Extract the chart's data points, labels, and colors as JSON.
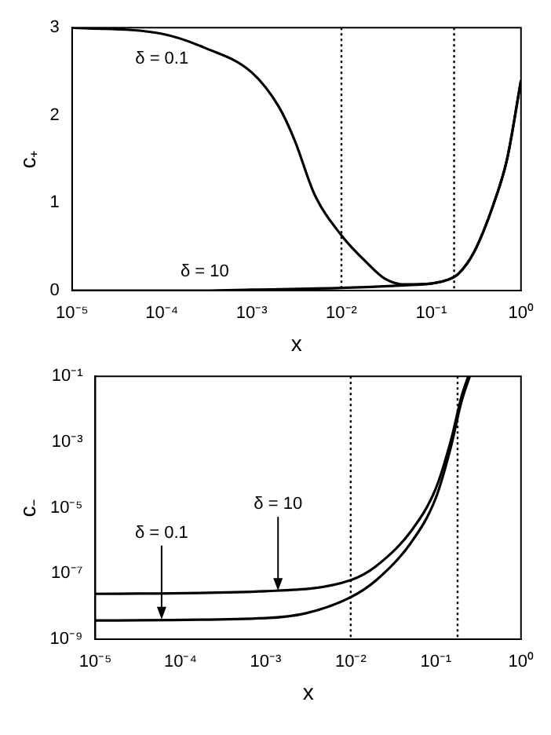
{
  "chart_data": [
    {
      "type": "line",
      "xlabel": "x",
      "ylabel": "c₊",
      "log": "x",
      "grid": false,
      "legend": false,
      "marker": "none",
      "line_style": "solid",
      "xlim": [
        1e-05,
        1
      ],
      "xticks": [
        {
          "value": 1e-05,
          "label": "10⁻⁵"
        },
        {
          "value": 0.0001,
          "label": "10⁻⁴"
        },
        {
          "value": 0.001,
          "label": "10⁻³"
        },
        {
          "value": 0.01,
          "label": "10⁻²"
        },
        {
          "value": 0.1,
          "label": "10⁻¹"
        },
        {
          "value": 1,
          "label": "10⁰"
        }
      ],
      "ylim": [
        0,
        3
      ],
      "yticks": [
        0,
        1,
        2,
        3
      ],
      "series": [
        {
          "color": "#000000",
          "x": [
            1e-05,
            0.0001,
            0.0003,
            0.001,
            0.002,
            0.003,
            0.005,
            0.01,
            0.02,
            0.03,
            0.05,
            0.1,
            0.15,
            0.2,
            0.3,
            0.5,
            0.7,
            1
          ],
          "values": [
            3,
            2.93,
            2.77,
            2.49,
            2.1,
            1.72,
            1.1,
            0.63,
            0.3,
            0.14,
            0.07,
            0.08,
            0.12,
            0.19,
            0.44,
            1.0,
            1.5,
            2.4
          ]
        },
        {
          "color": "#000000",
          "x": [
            1e-05,
            0.0001,
            0.0003,
            0.001,
            0.01,
            0.05,
            0.1,
            0.15,
            0.2,
            0.3,
            0.5,
            0.7,
            1
          ],
          "values": [
            0,
            0,
            0,
            0.01,
            0.03,
            0.06,
            0.08,
            0.12,
            0.19,
            0.44,
            1.0,
            1.5,
            2.4
          ]
        }
      ],
      "ref_lines": [
        {
          "axis": "x",
          "value": 0.01,
          "color": "#000000",
          "line_style": "dotted"
        },
        {
          "axis": "x",
          "value": 0.18,
          "color": "#000000",
          "line_style": "dotted"
        }
      ],
      "annotations": [
        {
          "text": "δ = 0.1",
          "x": 0.0001,
          "y": 2.93
        },
        {
          "text": "δ = 10",
          "x": 0.0003,
          "y": 0
        }
      ]
    },
    {
      "type": "line",
      "xlabel": "x",
      "ylabel": "c₋",
      "log": "xy",
      "grid": false,
      "legend": false,
      "marker": "none",
      "line_style": "solid",
      "xlim": [
        1e-05,
        1
      ],
      "xticks": [
        {
          "value": 1e-05,
          "label": "10⁻⁵"
        },
        {
          "value": 0.0001,
          "label": "10⁻⁴"
        },
        {
          "value": 0.001,
          "label": "10⁻³"
        },
        {
          "value": 0.01,
          "label": "10⁻²"
        },
        {
          "value": 0.1,
          "label": "10⁻¹"
        },
        {
          "value": 1,
          "label": "10⁰"
        }
      ],
      "ylim": [
        1e-09,
        0.1
      ],
      "yticks": [
        {
          "value": 1e-09,
          "label": "10⁻⁹"
        },
        {
          "value": 1e-07,
          "label": "10⁻⁷"
        },
        {
          "value": 1e-05,
          "label": "10⁻⁵"
        },
        {
          "value": 0.001,
          "label": "10⁻³"
        },
        {
          "value": 0.1,
          "label": "10⁻¹"
        }
      ],
      "series": [
        {
          "color": "#000000",
          "x": [
            1e-05,
            0.001,
            0.01,
            0.02,
            0.05,
            0.1,
            0.15,
            0.2,
            0.24
          ],
          "values": [
            2.4e-08,
            2.9e-08,
            6.3e-08,
            1.7e-07,
            1.8e-06,
            3.9e-05,
            0.0011,
            0.024,
            0.1
          ]
        },
        {
          "color": "#000000",
          "x": [
            1e-05,
            0.001,
            0.003,
            0.01,
            0.02,
            0.05,
            0.1,
            0.15,
            0.2,
            0.25
          ],
          "values": [
            3.7e-09,
            4.4e-09,
            6.2e-09,
            1.9e-08,
            6.3e-08,
            8e-07,
            2e-05,
            0.0007,
            0.017,
            0.1
          ]
        }
      ],
      "ref_lines": [
        {
          "axis": "x",
          "value": 0.01,
          "color": "#000000",
          "line_style": "dotted"
        },
        {
          "axis": "x",
          "value": 0.18,
          "color": "#000000",
          "line_style": "dotted"
        }
      ],
      "annotations": [
        {
          "text": "δ = 0.1",
          "x": 6e-05,
          "y": 4e-09
        },
        {
          "text": "δ = 10",
          "x": 0.0014,
          "y": 3e-08
        }
      ]
    }
  ]
}
